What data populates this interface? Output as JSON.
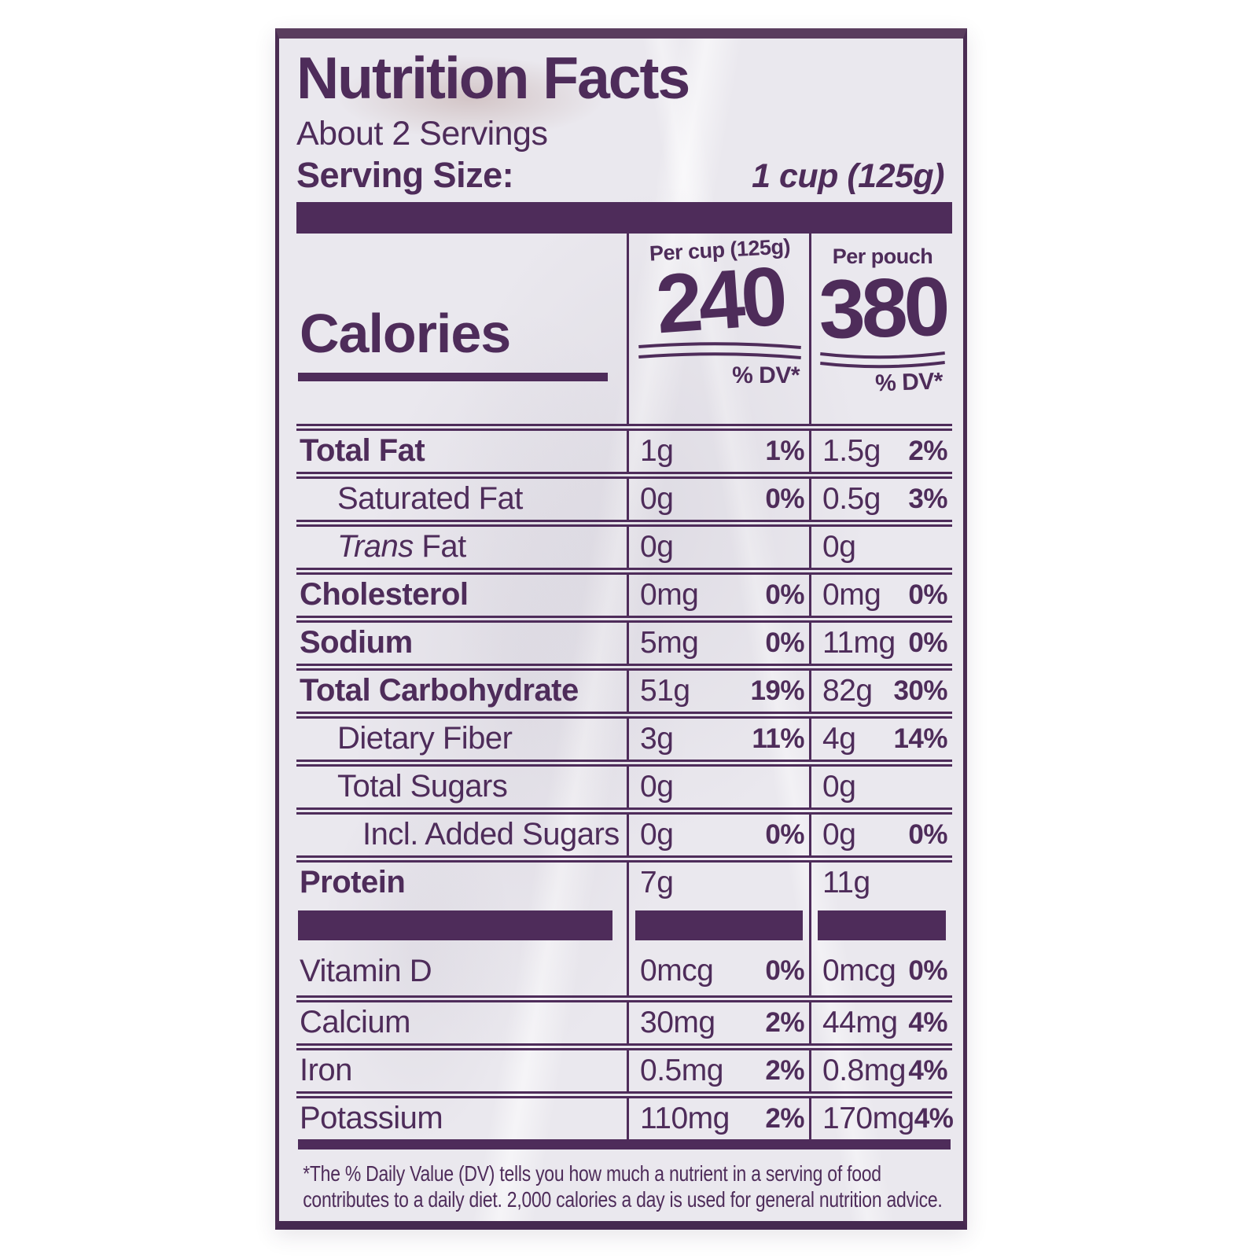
{
  "colors": {
    "purple": "#4e2c5a",
    "panel_bg": "#eae8ee"
  },
  "label": {
    "title": "Nutrition Facts",
    "servings": "About 2 Servings",
    "serving_size_label": "Serving Size:",
    "serving_size_value": "1 cup (125g)",
    "calories": {
      "label": "Calories",
      "columns": [
        {
          "header": "Per cup (125g)",
          "value": "240",
          "dv_header": "% DV*"
        },
        {
          "header": "Per pouch",
          "value": "380",
          "dv_header": "% DV*"
        }
      ]
    },
    "rows": [
      {
        "name": "Total Fat",
        "bold": true,
        "indent": 0,
        "cup_amount": "1g",
        "cup_dv": "1%",
        "pouch_amount": "1.5g",
        "pouch_dv": "2%"
      },
      {
        "name": "Saturated Fat",
        "bold": false,
        "indent": 1,
        "cup_amount": "0g",
        "cup_dv": "0%",
        "pouch_amount": "0.5g",
        "pouch_dv": "3%"
      },
      {
        "name": "Fat",
        "italic_prefix": "Trans",
        "bold": false,
        "indent": 1,
        "cup_amount": "0g",
        "cup_dv": "",
        "pouch_amount": "0g",
        "pouch_dv": ""
      },
      {
        "name": "Cholesterol",
        "bold": true,
        "indent": 0,
        "cup_amount": "0mg",
        "cup_dv": "0%",
        "pouch_amount": "0mg",
        "pouch_dv": "0%"
      },
      {
        "name": "Sodium",
        "bold": true,
        "indent": 0,
        "cup_amount": "5mg",
        "cup_dv": "0%",
        "pouch_amount": "11mg",
        "pouch_dv": "0%"
      },
      {
        "name": "Total Carbohydrate",
        "bold": true,
        "indent": 0,
        "cup_amount": "51g",
        "cup_dv": "19%",
        "pouch_amount": "82g",
        "pouch_dv": "30%"
      },
      {
        "name": "Dietary Fiber",
        "bold": false,
        "indent": 1,
        "cup_amount": "3g",
        "cup_dv": "11%",
        "pouch_amount": "4g",
        "pouch_dv": "14%"
      },
      {
        "name": "Total Sugars",
        "bold": false,
        "indent": 1,
        "cup_amount": "0g",
        "cup_dv": "",
        "pouch_amount": "0g",
        "pouch_dv": ""
      },
      {
        "name": "Incl. Added Sugars",
        "bold": false,
        "indent": 2,
        "cup_amount": "0g",
        "cup_dv": "0%",
        "pouch_amount": "0g",
        "pouch_dv": "0%"
      },
      {
        "name": "Protein",
        "bold": true,
        "indent": 0,
        "cup_amount": "7g",
        "cup_dv": "",
        "pouch_amount": "11g",
        "pouch_dv": ""
      }
    ],
    "micronutrients": [
      {
        "name": "Vitamin D",
        "bold": false,
        "indent": 0,
        "cup_amount": "0mcg",
        "cup_dv": "0%",
        "pouch_amount": "0mcg",
        "pouch_dv": "0%"
      },
      {
        "name": "Calcium",
        "bold": false,
        "indent": 0,
        "cup_amount": "30mg",
        "cup_dv": "2%",
        "pouch_amount": "44mg",
        "pouch_dv": "4%"
      },
      {
        "name": "Iron",
        "bold": false,
        "indent": 0,
        "cup_amount": "0.5mg",
        "cup_dv": "2%",
        "pouch_amount": "0.8mg",
        "pouch_dv": "4%"
      },
      {
        "name": "Potassium",
        "bold": false,
        "indent": 0,
        "cup_amount": "110mg",
        "cup_dv": "2%",
        "pouch_amount": "170mg",
        "pouch_dv": "4%"
      }
    ],
    "footnote": "*The % Daily Value (DV) tells you how much a nutrient in a serving of food contributes to a daily diet. 2,000 calories a day is used for general nutrition advice."
  }
}
